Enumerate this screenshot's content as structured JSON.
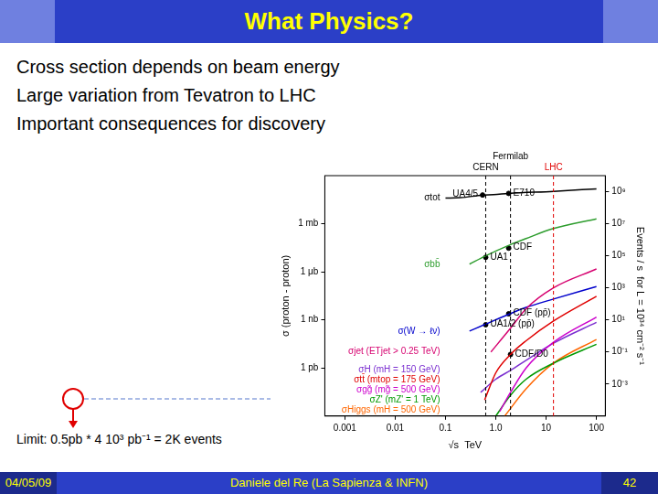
{
  "slide": {
    "title": "What Physics?",
    "bullets": [
      "Cross section depends on beam energy",
      "Large variation from Tevatron to LHC",
      "Important consequences for discovery"
    ],
    "annotation": "Limit: 0.5pb * 4 10³ pb⁻¹ = 2K events",
    "footer": {
      "date": "04/05/09",
      "author": "Daniele del Re (La Sapienza & INFN)",
      "page": "42"
    }
  },
  "chart_data": {
    "type": "line",
    "x_label": "√s  TeV",
    "y_label": "σ (proton - proton)",
    "y2_label": "Events / s  for L = 10³⁴ cm⁻² s⁻¹",
    "log": true,
    "grid": false,
    "xlim": [
      0.0004,
      150
    ],
    "xticks": [
      0.001,
      0.01,
      0.1,
      {
        "value": 1,
        "label": "1.0"
      },
      10,
      100
    ],
    "ylim": [
      0.001,
      1000000000000.0
    ],
    "yticks": [
      {
        "value": 1,
        "label": "1 pb"
      },
      {
        "value": 1000,
        "label": "1 nb"
      },
      {
        "value": 1000000,
        "label": "1 μb"
      },
      {
        "value": 1000000000,
        "label": "1 mb"
      }
    ],
    "y2lim": [
      1e-05,
      10000000000
    ],
    "y2ticks": [
      {
        "value": 0.001,
        "label": "10⁻³"
      },
      {
        "value": 0.1,
        "label": "10⁻¹"
      },
      {
        "value": 10,
        "label": "10¹"
      },
      {
        "value": 1000,
        "label": "10³"
      },
      {
        "value": 100000,
        "label": "10⁵"
      },
      {
        "value": 10000000,
        "label": "10⁷"
      },
      {
        "value": 1000000000,
        "label": "10⁹"
      }
    ],
    "series": [
      {
        "name": "σtot",
        "color": "#000000",
        "x": [
          0.1,
          0.2,
          0.546,
          0.9,
          1.8,
          14,
          100
        ],
        "values": [
          40000000000,
          42000000000,
          62000000000,
          65000000000,
          78000000000,
          105000000000,
          150000000000
        ]
      },
      {
        "name": "σbb̄",
        "color": "#2e9d2e",
        "x": [
          0.3,
          0.63,
          1.96,
          4,
          14,
          100
        ],
        "values": [
          3000000,
          10000000,
          50000000,
          120000000,
          500000000,
          2000000000
        ]
      },
      {
        "name": "σjet (ETjet > 0.25 TeV)",
        "color": "#d6006f",
        "x": [
          0.8,
          1.96,
          4,
          14,
          100
        ],
        "values": [
          10,
          300,
          5000,
          100000,
          1500000
        ]
      },
      {
        "name": "σ(W → ℓν)",
        "color": "#0000cc",
        "x": [
          0.3,
          0.63,
          1.96,
          4,
          14,
          100
        ],
        "values": [
          200,
          550,
          2500,
          6000,
          20000,
          120000
        ]
      },
      {
        "name": "σgg̃ (mg̃ = 500 GeV)",
        "color": "#cc00cc",
        "x": [
          1.2,
          1.96,
          4,
          14,
          100
        ],
        "values": [
          0.002,
          0.03,
          1,
          40,
          1500
        ]
      },
      {
        "name": "σtt̄ (mtop = 175 GeV)",
        "color": "#e00000",
        "x": [
          0.6,
          1,
          1.96,
          4,
          14,
          100
        ],
        "values": [
          0.01,
          0.5,
          7,
          50,
          850,
          30000
        ]
      },
      {
        "name": "σH (mH = 150 GeV)",
        "color": "#7b2fd0",
        "x": [
          0.5,
          1,
          1.96,
          4,
          14,
          100
        ],
        "values": [
          0.03,
          0.2,
          0.7,
          3,
          35,
          700
        ]
      },
      {
        "name": "σZ' (mZ' = 1 TeV)",
        "color": "#009900",
        "x": [
          1,
          1.96,
          4,
          14,
          100
        ],
        "values": [
          0.001,
          0.02,
          0.2,
          2,
          30
        ]
      },
      {
        "name": "σHiggs (mH = 500 GeV)",
        "color": "#ff6600",
        "x": [
          1.5,
          4,
          14,
          100
        ],
        "values": [
          0.001,
          0.05,
          2,
          60
        ]
      }
    ],
    "points": [
      {
        "name": "UA4/5",
        "x": 0.546,
        "y": 62000000000
      },
      {
        "name": "E710",
        "x": 1.8,
        "y": 78000000000
      },
      {
        "name": "CDF",
        "x": 1.8,
        "y": 30000000
      },
      {
        "name": "UA1",
        "x": 0.63,
        "y": 8000000
      },
      {
        "name": "CDF (pp̄)",
        "x": 1.8,
        "y": 2400
      },
      {
        "name": "UA1/2 (pp̄)",
        "x": 0.63,
        "y": 500
      },
      {
        "name": "CDF/D0",
        "x": 1.96,
        "y": 7
      }
    ],
    "vlines": [
      {
        "label": "CERN",
        "x": 0.63,
        "color": "#000000"
      },
      {
        "label": "Fermilab",
        "x": 1.96,
        "color": "#000000"
      },
      {
        "label": "LHC",
        "x": 14,
        "color": "#e00000"
      }
    ]
  }
}
